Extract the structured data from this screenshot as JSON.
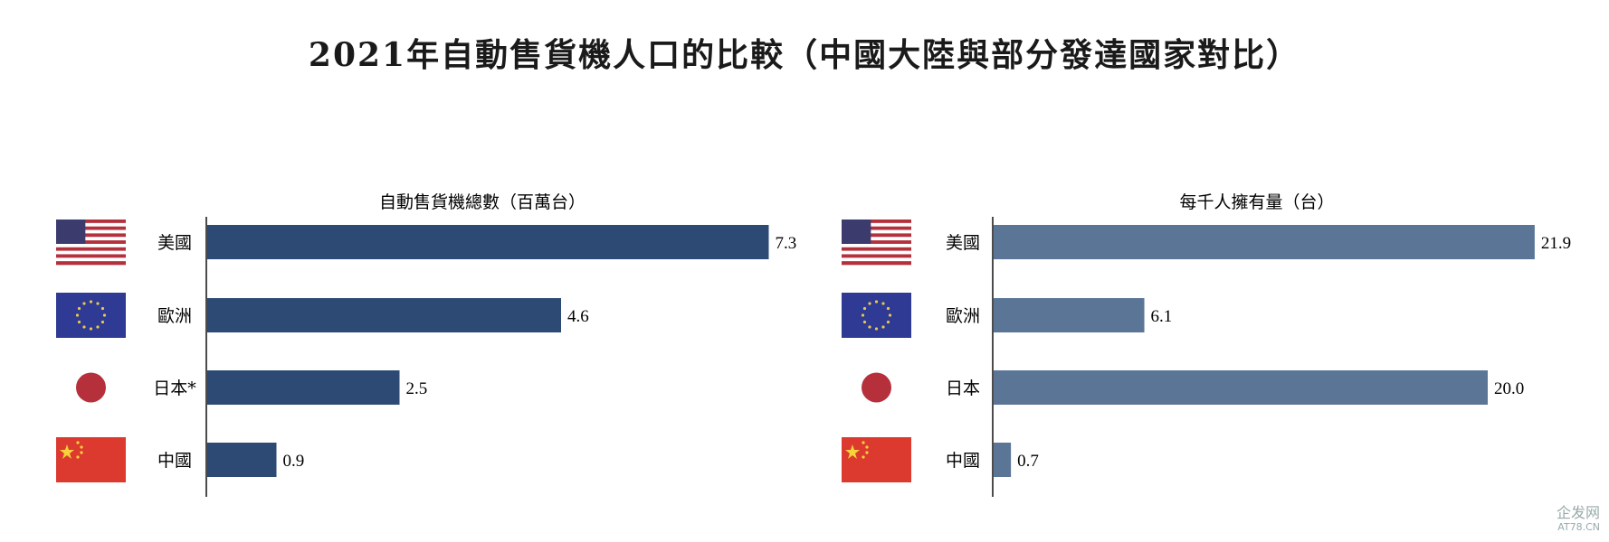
{
  "title": "2021年自動售貨機人口的比較（中國大陸與部分發達國家對比）",
  "colors": {
    "left_bar": "#2d4a75",
    "right_bar": "#5a7596"
  },
  "watermark": {
    "name": "企发网",
    "url_text": "AT78.CN"
  },
  "chart_data": [
    {
      "type": "bar",
      "orientation": "horizontal",
      "title": "自動售貨機總數（百萬台）",
      "categories": [
        "美國",
        "歐洲",
        "日本*",
        "中國"
      ],
      "flags": [
        "us-flag",
        "eu-flag",
        "japan-flag",
        "china-flag"
      ],
      "values": [
        7.3,
        4.6,
        2.5,
        0.9
      ],
      "value_labels": [
        "7.3",
        "4.6",
        "2.5",
        "0.9"
      ],
      "grid": false
    },
    {
      "type": "bar",
      "orientation": "horizontal",
      "title": "每千人擁有量（台）",
      "categories": [
        "美國",
        "歐洲",
        "日本",
        "中國"
      ],
      "flags": [
        "us-flag",
        "eu-flag",
        "japan-flag",
        "china-flag"
      ],
      "values": [
        21.9,
        6.1,
        20.0,
        0.7
      ],
      "value_labels": [
        "21.9",
        "6.1",
        "20.0",
        "0.7"
      ],
      "grid": false
    }
  ]
}
